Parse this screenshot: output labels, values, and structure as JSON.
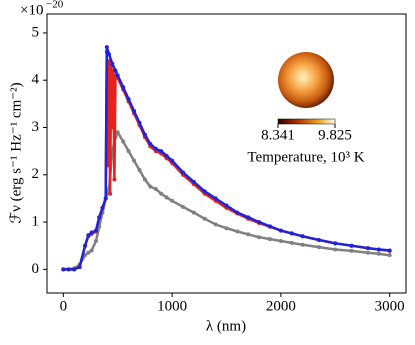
{
  "chart_data": {
    "type": "scatter",
    "x_label": "λ (nm)",
    "y_label": "ℱν (erg s⁻¹ Hz⁻¹ cm⁻²)",
    "y_offset": {
      "base": "×10",
      "exponent": "−20"
    },
    "xlim": [
      -150,
      3150
    ],
    "ylim": [
      -0.5,
      5.4
    ],
    "xticks": [
      0,
      1000,
      2000,
      3000
    ],
    "yticks": [
      0,
      1,
      2,
      3,
      4,
      5
    ],
    "series": [
      {
        "color": "#808080",
        "x": [
          0,
          50,
          100,
          150,
          200,
          230,
          260,
          300,
          330,
          360,
          390,
          420,
          450,
          480,
          500,
          550,
          600,
          650,
          700,
          750,
          800,
          850,
          900,
          950,
          1000,
          1100,
          1200,
          1300,
          1400,
          1500,
          1600,
          1700,
          1800,
          1900,
          2000,
          2100,
          2200,
          2350,
          2500,
          2650,
          2800,
          2900,
          3000
        ],
        "values": [
          0,
          0,
          0.02,
          0.1,
          0.3,
          0.35,
          0.4,
          0.6,
          0.9,
          1.2,
          1.5,
          1.7,
          2.5,
          2.8,
          2.9,
          2.7,
          2.5,
          2.3,
          2.1,
          1.9,
          1.75,
          1.7,
          1.6,
          1.52,
          1.45,
          1.32,
          1.2,
          1.07,
          0.95,
          0.87,
          0.8,
          0.74,
          0.68,
          0.64,
          0.6,
          0.56,
          0.52,
          0.47,
          0.42,
          0.39,
          0.35,
          0.33,
          0.3
        ]
      },
      {
        "color": "#e8211b",
        "x": [
          0,
          50,
          100,
          150,
          200,
          230,
          260,
          300,
          330,
          360,
          390,
          400,
          410,
          420,
          430,
          440,
          450,
          460,
          470,
          480,
          500,
          550,
          600,
          650,
          700,
          750,
          800,
          850,
          900,
          950,
          1000,
          1100,
          1200,
          1300,
          1400,
          1500,
          1600,
          1700,
          1800,
          1900,
          2000,
          2100,
          2200,
          2350,
          2500,
          2650,
          2800,
          2900,
          3000
        ],
        "values": [
          0,
          0,
          0,
          0.05,
          0.5,
          0.7,
          0.75,
          0.8,
          1.1,
          1.3,
          1.5,
          4.6,
          2.2,
          4.4,
          1.6,
          4.3,
          3.0,
          4.2,
          1.9,
          4.1,
          4.05,
          3.8,
          3.55,
          3.3,
          3.05,
          2.8,
          2.6,
          2.5,
          2.45,
          2.35,
          2.25,
          2.0,
          1.8,
          1.6,
          1.45,
          1.3,
          1.18,
          1.07,
          0.98,
          0.9,
          0.82,
          0.76,
          0.7,
          0.62,
          0.55,
          0.5,
          0.45,
          0.42,
          0.39
        ]
      },
      {
        "color": "#1f24d8",
        "x": [
          0,
          50,
          100,
          150,
          200,
          230,
          260,
          300,
          330,
          360,
          390,
          400,
          420,
          450,
          480,
          500,
          550,
          600,
          650,
          700,
          750,
          800,
          850,
          900,
          950,
          1000,
          1100,
          1200,
          1300,
          1400,
          1500,
          1600,
          1700,
          1800,
          1900,
          2000,
          2100,
          2200,
          2350,
          2500,
          2650,
          2800,
          2900,
          3000
        ],
        "values": [
          0,
          0,
          0,
          0.05,
          0.5,
          0.72,
          0.78,
          0.82,
          1.1,
          1.3,
          1.5,
          4.7,
          4.55,
          4.35,
          4.2,
          4.1,
          3.85,
          3.6,
          3.35,
          3.1,
          2.85,
          2.65,
          2.55,
          2.5,
          2.4,
          2.3,
          2.05,
          1.85,
          1.65,
          1.5,
          1.35,
          1.2,
          1.1,
          1.0,
          0.91,
          0.82,
          0.76,
          0.7,
          0.62,
          0.55,
          0.5,
          0.45,
          0.42,
          0.4
        ]
      }
    ],
    "colorbar": {
      "clim": [
        8.341,
        9.825
      ],
      "ticks": [
        8.341,
        9.825
      ],
      "label": "Temperature, 10³ K"
    }
  }
}
